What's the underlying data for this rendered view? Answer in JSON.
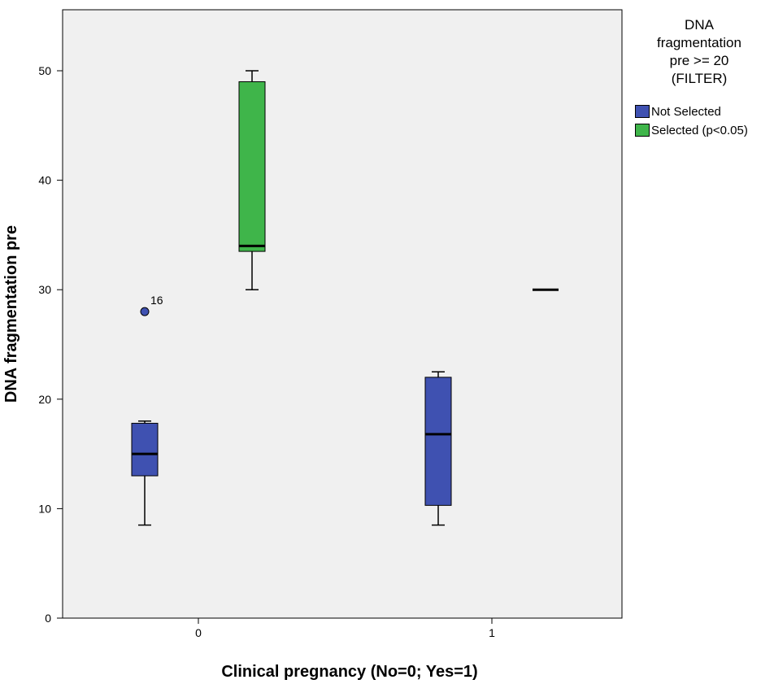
{
  "chart_data": {
    "type": "boxplot",
    "xlabel": "Clinical pregnancy (No=0; Yes=1)",
    "ylabel": "DNA fragmentation pre",
    "ylim": [
      0,
      55
    ],
    "y_ticks": [
      0,
      10,
      20,
      30,
      40,
      50
    ],
    "categories": [
      "0",
      "1"
    ],
    "legend": {
      "title_lines": [
        "DNA",
        "fragmentation",
        "pre >= 20",
        "(FILTER)"
      ],
      "placement": "right",
      "items": [
        {
          "label": "Not Selected",
          "color": "#3f51b1"
        },
        {
          "label": "Selected (p<0.05)",
          "color": "#3fb54a"
        }
      ]
    },
    "series": [
      {
        "name": "Not Selected",
        "color": "#3f51b1",
        "boxes": [
          {
            "category": "0",
            "min": 8.5,
            "q1": 13,
            "median": 15,
            "q3": 17.8,
            "max": 18,
            "outliers": [
              {
                "value": 28,
                "label": "16"
              }
            ]
          },
          {
            "category": "1",
            "min": 8.5,
            "q1": 10.3,
            "median": 16.8,
            "q3": 22,
            "max": 22.5,
            "outliers": []
          }
        ]
      },
      {
        "name": "Selected (p<0.05)",
        "color": "#3fb54a",
        "boxes": [
          {
            "category": "0",
            "min": 30,
            "q1": 33.5,
            "median": 34,
            "q3": 49,
            "max": 50,
            "outliers": []
          },
          {
            "category": "1",
            "min": 30,
            "q1": 30,
            "median": 30,
            "q3": 30,
            "max": 30,
            "outliers": []
          }
        ]
      }
    ]
  }
}
